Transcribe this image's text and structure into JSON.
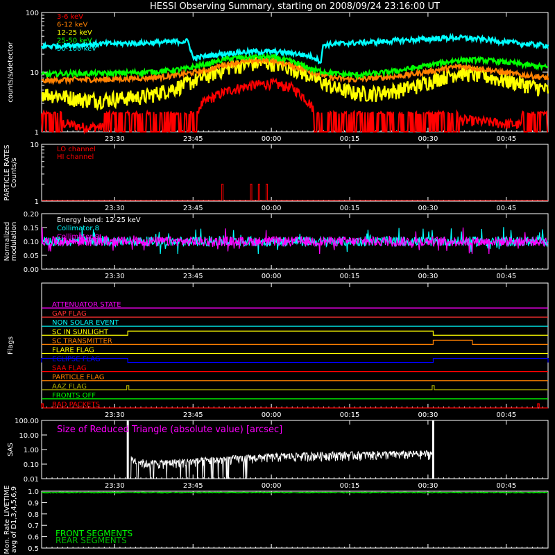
{
  "title": "HESSI Observing Summary, starting on 2008/09/24 23:16:00 UT",
  "colors": {
    "bg": "#000000",
    "axis": "#ffffff",
    "red": "#ff0000",
    "orange": "#ff8000",
    "yellow": "#ffff00",
    "green": "#00ff00",
    "cyan": "#00ffff",
    "magenta": "#ff00ff",
    "blue": "#0000ff",
    "olive": "#b0b000",
    "darkgreen": "#00c000"
  },
  "time_ticks": [
    "23:30",
    "23:45",
    "00:00",
    "00:15",
    "00:30",
    "00:45"
  ],
  "time_tick_minutes": [
    14,
    29,
    44,
    59,
    74,
    89
  ],
  "time_range_minutes": [
    0,
    97
  ],
  "chart_data": [
    {
      "type": "line",
      "name": "lightcurves",
      "ylabel": "counts/s/detector",
      "yscale": "log",
      "ylim": [
        1,
        100
      ],
      "yticks": [
        "1",
        "10",
        "100"
      ],
      "legend": [
        "3-6 keV",
        "6-12 keV",
        "12-25 keV",
        "25-50 keV",
        "50-100 keV"
      ],
      "series": [
        {
          "name": "3-6 keV",
          "color": "#ff0000",
          "x": [
            0,
            4,
            8,
            12,
            20,
            24,
            28,
            32,
            36,
            40,
            44,
            48,
            52,
            56,
            60,
            64,
            68,
            72,
            76,
            80,
            84,
            88,
            92,
            97
          ],
          "y": [
            1.7,
            1.4,
            1.2,
            1.2,
            1.3,
            1.4,
            1.6,
            3.5,
            5,
            6,
            6.5,
            5.5,
            2.5,
            1.3,
            1.2,
            1.3,
            1.4,
            1.5,
            1.6,
            1.6,
            1.5,
            1.4,
            1.3,
            1.2
          ]
        },
        {
          "name": "6-12 keV",
          "color": "#ff8000",
          "x": [
            0,
            4,
            8,
            12,
            20,
            24,
            28,
            32,
            36,
            40,
            44,
            48,
            52,
            56,
            60,
            64,
            68,
            72,
            76,
            80,
            84,
            88,
            92,
            97
          ],
          "y": [
            7,
            7.5,
            7.5,
            7.5,
            8,
            8.5,
            9.5,
            11,
            14,
            15.5,
            16,
            13,
            10,
            8,
            7.5,
            8,
            8.5,
            9.5,
            11,
            12.5,
            11.5,
            10,
            9,
            8
          ]
        },
        {
          "name": "12-25 keV",
          "color": "#ffff00",
          "x": [
            0,
            4,
            8,
            12,
            20,
            24,
            28,
            32,
            36,
            40,
            44,
            48,
            52,
            56,
            60,
            64,
            68,
            72,
            76,
            80,
            84,
            88,
            92,
            97
          ],
          "y": [
            4.5,
            4,
            3.5,
            3.5,
            4,
            5,
            6.5,
            9,
            12.5,
            14,
            14.5,
            12,
            8,
            5.5,
            4.5,
            4.5,
            5,
            6,
            8,
            10,
            9,
            7.5,
            6.5,
            5
          ]
        },
        {
          "name": "25-50 keV",
          "color": "#00ff00",
          "x": [
            0,
            4,
            8,
            12,
            20,
            24,
            28,
            32,
            36,
            40,
            44,
            48,
            52,
            56,
            60,
            64,
            68,
            72,
            76,
            80,
            84,
            88,
            92,
            97
          ],
          "y": [
            9,
            9.5,
            9.5,
            9.5,
            10,
            10.5,
            11.5,
            14,
            17,
            18,
            18,
            15,
            11,
            9.5,
            9,
            9.5,
            10.5,
            12,
            14,
            16,
            16,
            15,
            13.5,
            12
          ]
        },
        {
          "name": "50-100 keV",
          "color": "#00ffff",
          "x": [
            0,
            4,
            8,
            12,
            20,
            24,
            28,
            29,
            32,
            36,
            40,
            44,
            48,
            52,
            53.5,
            54,
            60,
            64,
            68,
            72,
            76,
            80,
            84,
            88,
            92,
            97
          ],
          "y": [
            27,
            28,
            29,
            30,
            31,
            32,
            33,
            17,
            19,
            21,
            22,
            22,
            21,
            18,
            15,
            29,
            31,
            32,
            34,
            35,
            37,
            38,
            36,
            33,
            30,
            28
          ]
        }
      ]
    },
    {
      "type": "line",
      "name": "particle-rates",
      "ylabel": "PARTICLE RATES Counts/s",
      "yscale": "log",
      "ylim": [
        1,
        10
      ],
      "yticks": [
        "1",
        "10"
      ],
      "legend": [
        "LO channel",
        "HI channel"
      ],
      "spikes_minutes": [
        34.5,
        40,
        41.5,
        43
      ],
      "spike_value": 2
    },
    {
      "type": "line",
      "name": "modulation",
      "ylabel": "Normalized modulation",
      "ylim": [
        0,
        0.2
      ],
      "yticks": [
        "0.00",
        "0.05",
        "0.10",
        "0.15",
        "0.20"
      ],
      "legend": [
        "Energy band: 12-25 keV",
        "Collimator 8",
        "Collimator 9"
      ],
      "mean": 0.1,
      "spread": 0.035
    },
    {
      "type": "line",
      "name": "flags",
      "ylabel": "Flags",
      "flags": [
        {
          "label": "ATTENUATOR STATE",
          "color": "#ff00ff",
          "high": []
        },
        {
          "label": "GAP FLAG",
          "color": "#ff3030",
          "high": []
        },
        {
          "label": "NON SOLAR EVENT",
          "color": "#00ffff",
          "high": []
        },
        {
          "label": "SC IN SUNLIGHT",
          "color": "#ffff00",
          "high": [
            [
              16.5,
              75
            ]
          ]
        },
        {
          "label": "SC TRANSMITTER",
          "color": "#ff8000",
          "high": [
            [
              75,
              82.5
            ]
          ]
        },
        {
          "label": "FLARE FLAG",
          "color": "#ffff00",
          "high": []
        },
        {
          "label": "ECLIPSE FLAG",
          "color": "#0000ff",
          "high": [
            [
              0,
              16.5
            ],
            [
              75,
              97
            ]
          ]
        },
        {
          "label": "SAA FLAG",
          "color": "#ff0000",
          "high": []
        },
        {
          "label": "PARTICLE FLAG",
          "color": "#ff8000",
          "high": []
        },
        {
          "label": "AAZ FLAG",
          "color": "#b0b000",
          "high": [
            [
              16.3,
              16.7
            ],
            [
              74.8,
              75.2
            ]
          ]
        },
        {
          "label": "FRONTS OFF",
          "color": "#00ff00",
          "high": []
        },
        {
          "label": "BAD PACKETS",
          "color": "#ff0000",
          "high": [
            [
              0,
              0.3
            ],
            [
              95,
              95.3
            ]
          ]
        }
      ]
    },
    {
      "type": "line",
      "name": "sas",
      "ylabel": "SAS",
      "yscale": "log",
      "ylim": [
        0.01,
        100
      ],
      "yticks": [
        "0.01",
        "0.10",
        "1.00",
        "10.00",
        "100.00"
      ],
      "legend": [
        "Size of Reduced Triangle (absolute value) [arcsec]"
      ],
      "x": [
        16.5,
        17,
        20,
        25,
        30,
        35,
        40,
        44,
        50,
        55,
        60,
        65,
        70,
        75
      ],
      "y": [
        100,
        0.2,
        0.1,
        0.12,
        0.15,
        0.2,
        0.25,
        0.3,
        0.35,
        0.4,
        0.4,
        0.45,
        0.45,
        0.5
      ],
      "spike_end_minutes": 75
    },
    {
      "type": "line",
      "name": "livetime",
      "ylabel": "Mon. Rate LIVETIME avg of D1,3,4,5,6,9",
      "ylim": [
        0.5,
        1.0
      ],
      "yticks": [
        "0.5",
        "0.6",
        "0.7",
        "0.8",
        "0.9",
        "1.0"
      ],
      "legend": [
        "FRONT SEGMENTS",
        "REAR SEGMENTS"
      ],
      "front_value": 0.99,
      "rear_value": 0.985
    }
  ]
}
